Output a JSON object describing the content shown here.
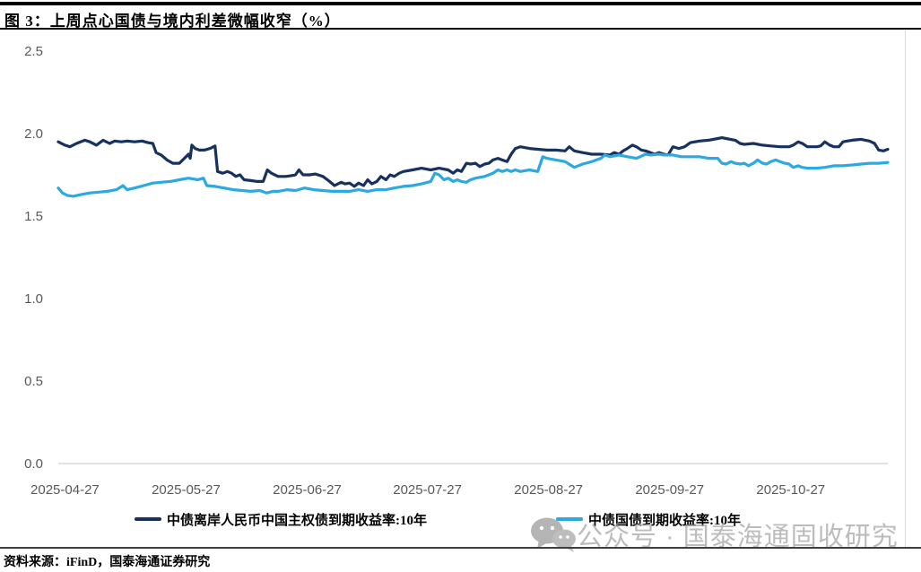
{
  "figure": {
    "title": "图 3：上周点心国债与境内利差微幅收窄（%）",
    "source_note": "资料来源：iFinD，国泰海通证券研究",
    "watermark_text": "公众号 · 国泰海通固收研究"
  },
  "colors": {
    "offshore_line": "#17325F",
    "onshore_line": "#2BA9E0",
    "axis_text": "#595959",
    "baseline": "#d9d9d9",
    "watermark": "#a6a6a6"
  },
  "chart_data": {
    "type": "line",
    "title": "上周点心国债与境内利差微幅收窄（%）",
    "xlabel": "",
    "ylabel": "",
    "x_range": [
      "2025-04-27",
      "2025-11-21"
    ],
    "ylim": [
      0.0,
      2.5
    ],
    "grid": false,
    "legend_position": "bottom",
    "y_ticks": [
      {
        "value": 2.5,
        "label": "2.5"
      },
      {
        "value": 2.0,
        "label": "2.0"
      },
      {
        "value": 1.5,
        "label": "1.5"
      },
      {
        "value": 1.0,
        "label": "1.0"
      },
      {
        "value": 0.5,
        "label": "0.5"
      },
      {
        "value": 0.0,
        "label": "0.0"
      }
    ],
    "x_ticks": [
      {
        "t": 0.008,
        "label": "2025-04-27"
      },
      {
        "t": 0.154,
        "label": "2025-05-27"
      },
      {
        "t": 0.3,
        "label": "2025-06-27"
      },
      {
        "t": 0.445,
        "label": "2025-07-27"
      },
      {
        "t": 0.591,
        "label": "2025-08-27"
      },
      {
        "t": 0.737,
        "label": "2025-09-27"
      },
      {
        "t": 0.883,
        "label": "2025-10-27"
      }
    ],
    "series": [
      {
        "name": "中债离岸人民币中国主权债到期收益率:10年",
        "color": "#17325F",
        "points": [
          [
            0.0,
            1.95
          ],
          [
            0.008,
            1.93
          ],
          [
            0.014,
            1.92
          ],
          [
            0.022,
            1.94
          ],
          [
            0.032,
            1.96
          ],
          [
            0.038,
            1.95
          ],
          [
            0.046,
            1.93
          ],
          [
            0.054,
            1.96
          ],
          [
            0.062,
            1.94
          ],
          [
            0.068,
            1.955
          ],
          [
            0.076,
            1.95
          ],
          [
            0.083,
            1.955
          ],
          [
            0.092,
            1.95
          ],
          [
            0.101,
            1.955
          ],
          [
            0.108,
            1.945
          ],
          [
            0.114,
            1.94
          ],
          [
            0.118,
            1.885
          ],
          [
            0.124,
            1.87
          ],
          [
            0.131,
            1.84
          ],
          [
            0.138,
            1.82
          ],
          [
            0.146,
            1.82
          ],
          [
            0.154,
            1.86
          ],
          [
            0.157,
            1.875
          ],
          [
            0.159,
            1.85
          ],
          [
            0.161,
            1.93
          ],
          [
            0.165,
            1.91
          ],
          [
            0.17,
            1.9
          ],
          [
            0.176,
            1.9
          ],
          [
            0.183,
            1.91
          ],
          [
            0.189,
            1.925
          ],
          [
            0.192,
            1.77
          ],
          [
            0.198,
            1.76
          ],
          [
            0.204,
            1.77
          ],
          [
            0.209,
            1.76
          ],
          [
            0.214,
            1.74
          ],
          [
            0.219,
            1.75
          ],
          [
            0.224,
            1.72
          ],
          [
            0.232,
            1.715
          ],
          [
            0.24,
            1.71
          ],
          [
            0.247,
            1.71
          ],
          [
            0.252,
            1.78
          ],
          [
            0.257,
            1.76
          ],
          [
            0.265,
            1.74
          ],
          [
            0.274,
            1.74
          ],
          [
            0.281,
            1.745
          ],
          [
            0.286,
            1.75
          ],
          [
            0.29,
            1.78
          ],
          [
            0.295,
            1.75
          ],
          [
            0.303,
            1.75
          ],
          [
            0.31,
            1.755
          ],
          [
            0.319,
            1.74
          ],
          [
            0.327,
            1.71
          ],
          [
            0.333,
            1.685
          ],
          [
            0.341,
            1.705
          ],
          [
            0.346,
            1.695
          ],
          [
            0.351,
            1.7
          ],
          [
            0.357,
            1.68
          ],
          [
            0.362,
            1.7
          ],
          [
            0.368,
            1.685
          ],
          [
            0.373,
            1.72
          ],
          [
            0.378,
            1.695
          ],
          [
            0.384,
            1.71
          ],
          [
            0.389,
            1.74
          ],
          [
            0.395,
            1.72
          ],
          [
            0.4,
            1.75
          ],
          [
            0.405,
            1.74
          ],
          [
            0.411,
            1.76
          ],
          [
            0.416,
            1.77
          ],
          [
            0.427,
            1.78
          ],
          [
            0.438,
            1.79
          ],
          [
            0.449,
            1.78
          ],
          [
            0.459,
            1.79
          ],
          [
            0.47,
            1.78
          ],
          [
            0.476,
            1.76
          ],
          [
            0.481,
            1.78
          ],
          [
            0.486,
            1.77
          ],
          [
            0.492,
            1.82
          ],
          [
            0.497,
            1.815
          ],
          [
            0.503,
            1.82
          ],
          [
            0.508,
            1.8
          ],
          [
            0.514,
            1.815
          ],
          [
            0.519,
            1.82
          ],
          [
            0.524,
            1.84
          ],
          [
            0.53,
            1.85
          ],
          [
            0.535,
            1.84
          ],
          [
            0.541,
            1.83
          ],
          [
            0.546,
            1.875
          ],
          [
            0.551,
            1.91
          ],
          [
            0.557,
            1.92
          ],
          [
            0.568,
            1.91
          ],
          [
            0.578,
            1.905
          ],
          [
            0.589,
            1.9
          ],
          [
            0.6,
            1.9
          ],
          [
            0.611,
            1.895
          ],
          [
            0.616,
            1.92
          ],
          [
            0.622,
            1.895
          ],
          [
            0.632,
            1.885
          ],
          [
            0.643,
            1.875
          ],
          [
            0.654,
            1.875
          ],
          [
            0.665,
            1.87
          ],
          [
            0.67,
            1.885
          ],
          [
            0.676,
            1.875
          ],
          [
            0.681,
            1.895
          ],
          [
            0.686,
            1.91
          ],
          [
            0.692,
            1.93
          ],
          [
            0.697,
            1.92
          ],
          [
            0.703,
            1.9
          ],
          [
            0.708,
            1.895
          ],
          [
            0.714,
            1.885
          ],
          [
            0.719,
            1.875
          ],
          [
            0.724,
            1.885
          ],
          [
            0.73,
            1.875
          ],
          [
            0.735,
            1.87
          ],
          [
            0.741,
            1.92
          ],
          [
            0.748,
            1.91
          ],
          [
            0.755,
            1.92
          ],
          [
            0.762,
            1.945
          ],
          [
            0.773,
            1.955
          ],
          [
            0.784,
            1.96
          ],
          [
            0.795,
            1.97
          ],
          [
            0.8,
            1.975
          ],
          [
            0.805,
            1.97
          ],
          [
            0.816,
            1.96
          ],
          [
            0.822,
            1.94
          ],
          [
            0.827,
            1.935
          ],
          [
            0.838,
            1.94
          ],
          [
            0.849,
            1.93
          ],
          [
            0.859,
            1.925
          ],
          [
            0.87,
            1.92
          ],
          [
            0.881,
            1.92
          ],
          [
            0.886,
            1.93
          ],
          [
            0.892,
            1.95
          ],
          [
            0.897,
            1.94
          ],
          [
            0.903,
            1.92
          ],
          [
            0.914,
            1.92
          ],
          [
            0.919,
            1.925
          ],
          [
            0.924,
            1.95
          ],
          [
            0.93,
            1.93
          ],
          [
            0.935,
            1.92
          ],
          [
            0.941,
            1.92
          ],
          [
            0.946,
            1.95
          ],
          [
            0.951,
            1.955
          ],
          [
            0.957,
            1.96
          ],
          [
            0.968,
            1.965
          ],
          [
            0.973,
            1.96
          ],
          [
            0.978,
            1.955
          ],
          [
            0.984,
            1.94
          ],
          [
            0.989,
            1.9
          ],
          [
            0.995,
            1.895
          ],
          [
            1.0,
            1.905
          ]
        ]
      },
      {
        "name": "中债国债到期收益率:10年",
        "color": "#2BA9E0",
        "points": [
          [
            0.0,
            1.67
          ],
          [
            0.005,
            1.64
          ],
          [
            0.011,
            1.625
          ],
          [
            0.018,
            1.62
          ],
          [
            0.027,
            1.63
          ],
          [
            0.038,
            1.64
          ],
          [
            0.049,
            1.645
          ],
          [
            0.059,
            1.65
          ],
          [
            0.07,
            1.66
          ],
          [
            0.078,
            1.685
          ],
          [
            0.083,
            1.66
          ],
          [
            0.092,
            1.67
          ],
          [
            0.103,
            1.685
          ],
          [
            0.114,
            1.7
          ],
          [
            0.124,
            1.705
          ],
          [
            0.135,
            1.71
          ],
          [
            0.146,
            1.72
          ],
          [
            0.157,
            1.73
          ],
          [
            0.168,
            1.72
          ],
          [
            0.175,
            1.73
          ],
          [
            0.179,
            1.685
          ],
          [
            0.189,
            1.68
          ],
          [
            0.2,
            1.67
          ],
          [
            0.211,
            1.66
          ],
          [
            0.222,
            1.655
          ],
          [
            0.232,
            1.65
          ],
          [
            0.243,
            1.655
          ],
          [
            0.251,
            1.64
          ],
          [
            0.259,
            1.65
          ],
          [
            0.265,
            1.65
          ],
          [
            0.276,
            1.66
          ],
          [
            0.286,
            1.655
          ],
          [
            0.297,
            1.67
          ],
          [
            0.308,
            1.66
          ],
          [
            0.319,
            1.655
          ],
          [
            0.33,
            1.65
          ],
          [
            0.341,
            1.65
          ],
          [
            0.351,
            1.65
          ],
          [
            0.362,
            1.66
          ],
          [
            0.373,
            1.65
          ],
          [
            0.384,
            1.66
          ],
          [
            0.395,
            1.66
          ],
          [
            0.405,
            1.67
          ],
          [
            0.416,
            1.68
          ],
          [
            0.427,
            1.685
          ],
          [
            0.438,
            1.695
          ],
          [
            0.449,
            1.71
          ],
          [
            0.454,
            1.76
          ],
          [
            0.459,
            1.75
          ],
          [
            0.465,
            1.72
          ],
          [
            0.47,
            1.73
          ],
          [
            0.476,
            1.71
          ],
          [
            0.481,
            1.72
          ],
          [
            0.486,
            1.71
          ],
          [
            0.492,
            1.705
          ],
          [
            0.497,
            1.72
          ],
          [
            0.503,
            1.73
          ],
          [
            0.514,
            1.74
          ],
          [
            0.524,
            1.76
          ],
          [
            0.53,
            1.78
          ],
          [
            0.535,
            1.77
          ],
          [
            0.541,
            1.78
          ],
          [
            0.546,
            1.77
          ],
          [
            0.551,
            1.78
          ],
          [
            0.557,
            1.77
          ],
          [
            0.568,
            1.78
          ],
          [
            0.578,
            1.77
          ],
          [
            0.584,
            1.86
          ],
          [
            0.589,
            1.85
          ],
          [
            0.6,
            1.84
          ],
          [
            0.611,
            1.83
          ],
          [
            0.622,
            1.795
          ],
          [
            0.632,
            1.815
          ],
          [
            0.643,
            1.83
          ],
          [
            0.654,
            1.85
          ],
          [
            0.659,
            1.87
          ],
          [
            0.665,
            1.86
          ],
          [
            0.676,
            1.87
          ],
          [
            0.686,
            1.86
          ],
          [
            0.697,
            1.85
          ],
          [
            0.708,
            1.875
          ],
          [
            0.714,
            1.87
          ],
          [
            0.724,
            1.875
          ],
          [
            0.73,
            1.87
          ],
          [
            0.741,
            1.87
          ],
          [
            0.751,
            1.86
          ],
          [
            0.762,
            1.86
          ],
          [
            0.773,
            1.86
          ],
          [
            0.784,
            1.85
          ],
          [
            0.795,
            1.85
          ],
          [
            0.8,
            1.82
          ],
          [
            0.805,
            1.815
          ],
          [
            0.811,
            1.83
          ],
          [
            0.816,
            1.82
          ],
          [
            0.822,
            1.815
          ],
          [
            0.827,
            1.82
          ],
          [
            0.832,
            1.805
          ],
          [
            0.838,
            1.82
          ],
          [
            0.843,
            1.84
          ],
          [
            0.849,
            1.82
          ],
          [
            0.854,
            1.815
          ],
          [
            0.859,
            1.83
          ],
          [
            0.865,
            1.84
          ],
          [
            0.87,
            1.83
          ],
          [
            0.876,
            1.82
          ],
          [
            0.881,
            1.815
          ],
          [
            0.886,
            1.795
          ],
          [
            0.892,
            1.805
          ],
          [
            0.897,
            1.795
          ],
          [
            0.903,
            1.79
          ],
          [
            0.914,
            1.79
          ],
          [
            0.924,
            1.795
          ],
          [
            0.935,
            1.805
          ],
          [
            0.946,
            1.805
          ],
          [
            0.957,
            1.81
          ],
          [
            0.968,
            1.815
          ],
          [
            0.978,
            1.82
          ],
          [
            0.989,
            1.82
          ],
          [
            1.0,
            1.825
          ]
        ]
      }
    ]
  }
}
